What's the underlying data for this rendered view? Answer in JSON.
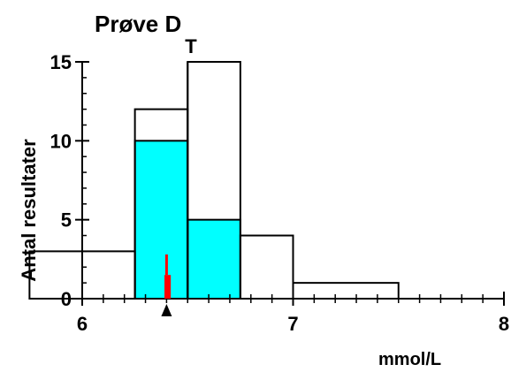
{
  "chart_data": {
    "type": "bar",
    "title": "Prøve D",
    "xlabel": "mmol/L",
    "ylabel": "Antal resultater",
    "xlim": [
      6,
      8
    ],
    "ylim": [
      0,
      15
    ],
    "x_ticks": [
      6,
      7,
      8
    ],
    "y_ticks": [
      0,
      5,
      10,
      15
    ],
    "bins": [
      {
        "from": 5.75,
        "to": 6.25,
        "total": 3,
        "highlighted": 0
      },
      {
        "from": 6.25,
        "to": 6.5,
        "total": 12,
        "highlighted": 10
      },
      {
        "from": 6.5,
        "to": 6.75,
        "total": 15,
        "highlighted": 5
      },
      {
        "from": 6.75,
        "to": 7.0,
        "total": 4,
        "highlighted": 0
      },
      {
        "from": 7.0,
        "to": 7.5,
        "total": 1,
        "highlighted": 0
      }
    ],
    "target_label": "T",
    "target_value": 6.5,
    "result_value": 6.4,
    "result_range": [
      6.39,
      6.42
    ],
    "result_ylow": 0,
    "result_ymid": 1.5,
    "result_yhigh": 2.8,
    "colors": {
      "highlight_fill": "#00ffff",
      "outline": "#000000",
      "result_marker": "#ff0000",
      "arrow": "#000000"
    }
  }
}
